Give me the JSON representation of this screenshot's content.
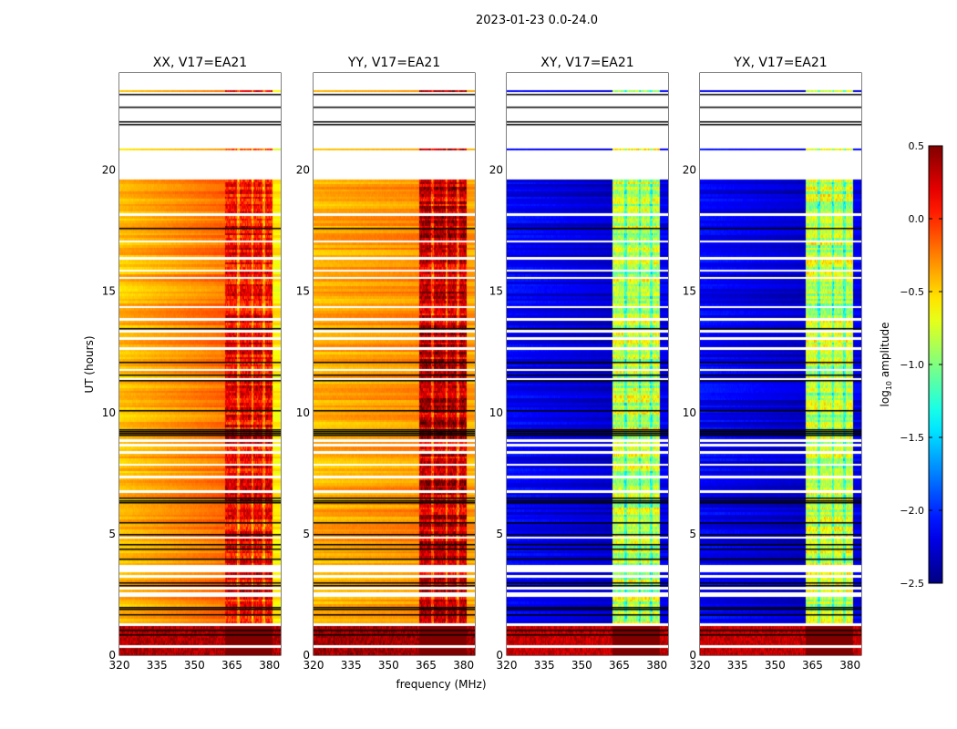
{
  "chart_data": {
    "type": "heatmap",
    "title": "2023-01-23 0.0-24.0",
    "xlabel": "frequency (MHz)",
    "ylabel": "UT (hours)",
    "xlim": [
      320,
      384.5
    ],
    "ylim": [
      0,
      24
    ],
    "xticks": [
      320,
      335,
      350,
      365,
      380
    ],
    "yticks": [
      0,
      5,
      10,
      15,
      20
    ],
    "colorbar": {
      "label": "log10 amplitude",
      "label_main": "log",
      "label_sub": "10",
      "label_tail": " amplitude",
      "clim": [
        -2.5,
        0.5
      ],
      "ticks": [
        "0.5",
        "0.0",
        "−0.5",
        "−1.0",
        "−1.5",
        "−2.0",
        "−2.5"
      ],
      "tick_values": [
        0.5,
        0.0,
        -0.5,
        -1.0,
        -1.5,
        -2.0,
        -2.5
      ],
      "colormap": "jet"
    },
    "panels": [
      {
        "title": "XX, V17=EA21",
        "base_low": -0.45,
        "base_high": -0.2,
        "band_level": 0.15,
        "edge_level": -0.6,
        "early_level": 0.35
      },
      {
        "title": "YY, V17=EA21",
        "base_low": -0.4,
        "base_high": -0.3,
        "band_level": 0.3,
        "edge_level": -0.35,
        "early_level": 0.4
      },
      {
        "title": "XY, V17=EA21",
        "base_low": -2.15,
        "base_high": -2.3,
        "band_level": -0.8,
        "edge_level": -2.2,
        "early_level": 0.3
      },
      {
        "title": "YX, V17=EA21",
        "base_low": -2.15,
        "base_high": -2.3,
        "band_level": -0.8,
        "edge_level": -2.2,
        "early_level": 0.3
      }
    ],
    "band_mhz": [
      362,
      381
    ],
    "band_gaps_mhz": [
      367.5,
      373,
      377.5
    ],
    "flagged_ranges_hours": [
      [
        19.55,
        20.75
      ],
      [
        20.85,
        23.15
      ],
      [
        23.3,
        24
      ]
    ],
    "flagged_lines_hours": [
      0.35,
      1.25,
      1.55,
      2.45,
      2.75,
      3.2,
      3.45,
      3.65,
      4.85,
      6.75,
      7.3,
      7.8,
      8.3,
      8.55,
      8.85,
      11.3,
      11.75,
      12.6,
      13.0,
      13.3,
      13.85,
      14.3,
      15.5,
      15.8,
      16.3,
      17.0,
      17.55,
      17.85,
      18.1,
      18.35,
      18.75,
      19.05
    ],
    "black_lines_hours": [
      0.85,
      1.05,
      1.7,
      1.9,
      2.0,
      2.9,
      3.0,
      4.0,
      4.4,
      4.6,
      5.0,
      5.5,
      6.3,
      6.4,
      6.5,
      9.1,
      9.15,
      9.25,
      9.3,
      10.1,
      11.35,
      11.55,
      12.1,
      13.5,
      17.6,
      21.9,
      22.0,
      22.6,
      23.15
    ]
  }
}
